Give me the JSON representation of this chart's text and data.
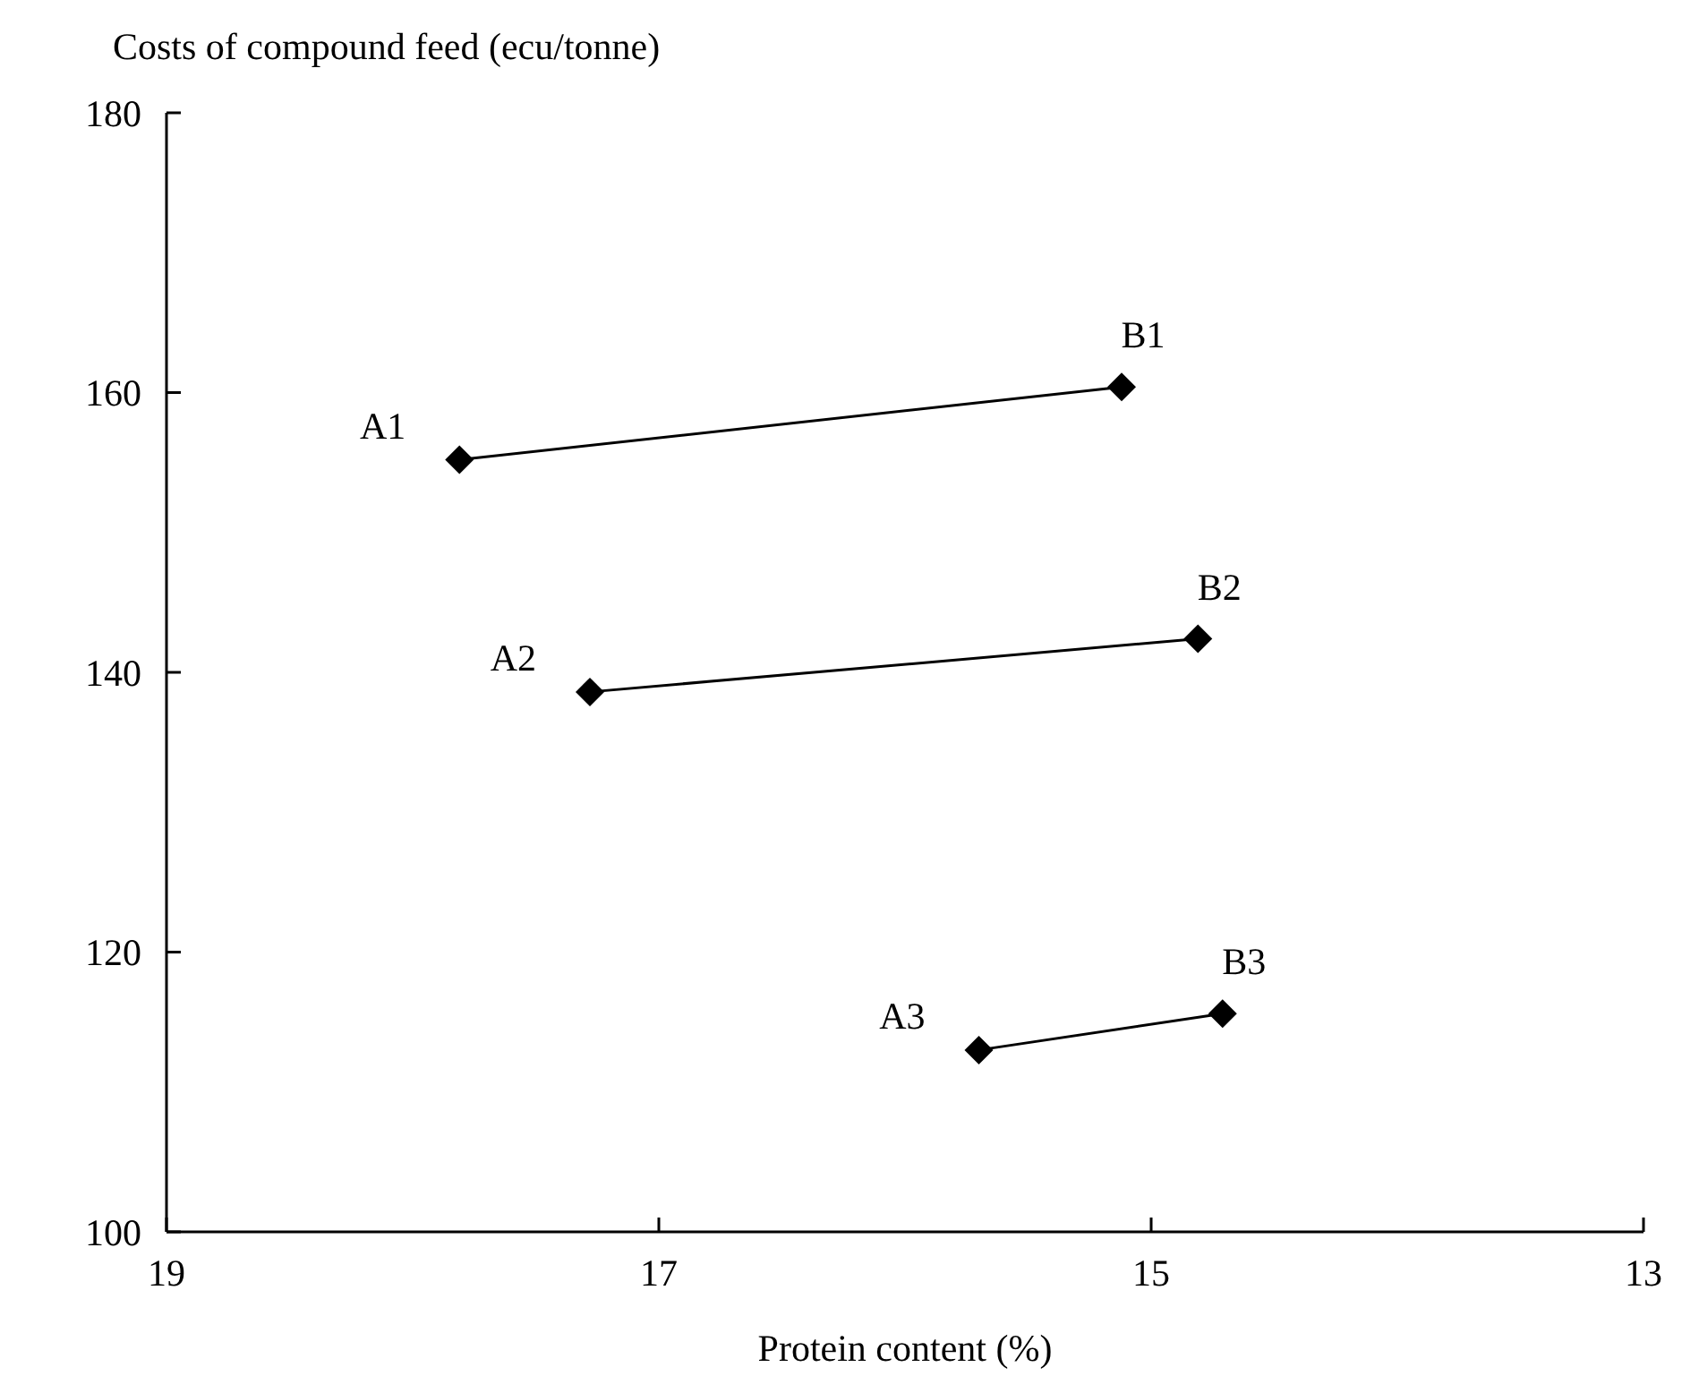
{
  "chart_data": {
    "type": "line",
    "ylabel": "Costs of compound feed (ecu/tonne)",
    "xlabel": "Protein content (%)",
    "xlim": [
      19,
      13
    ],
    "xticks": [
      19,
      17,
      15,
      13
    ],
    "ylim": [
      100,
      180
    ],
    "yticks": [
      100,
      120,
      140,
      160,
      180
    ],
    "grid": false,
    "marker": "diamond",
    "line_style": "solid",
    "series": [
      {
        "color": "#000000",
        "x": [
          17.81,
          15.12
        ],
        "values": [
          155.2,
          160.4
        ]
      },
      {
        "color": "#000000",
        "x": [
          17.28,
          14.81
        ],
        "values": [
          138.6,
          142.4
        ]
      },
      {
        "color": "#000000",
        "x": [
          15.7,
          14.71
        ],
        "values": [
          113.0,
          115.6
        ]
      }
    ],
    "annotations": [
      {
        "text": "A1",
        "x": 17.81,
        "y": 155.2
      },
      {
        "text": "B1",
        "x": 15.12,
        "y": 160.4
      },
      {
        "text": "A2",
        "x": 17.28,
        "y": 138.6
      },
      {
        "text": "B2",
        "x": 14.81,
        "y": 142.4
      },
      {
        "text": "A3",
        "x": 15.7,
        "y": 113.0
      },
      {
        "text": "B3",
        "x": 14.71,
        "y": 115.6
      }
    ]
  }
}
